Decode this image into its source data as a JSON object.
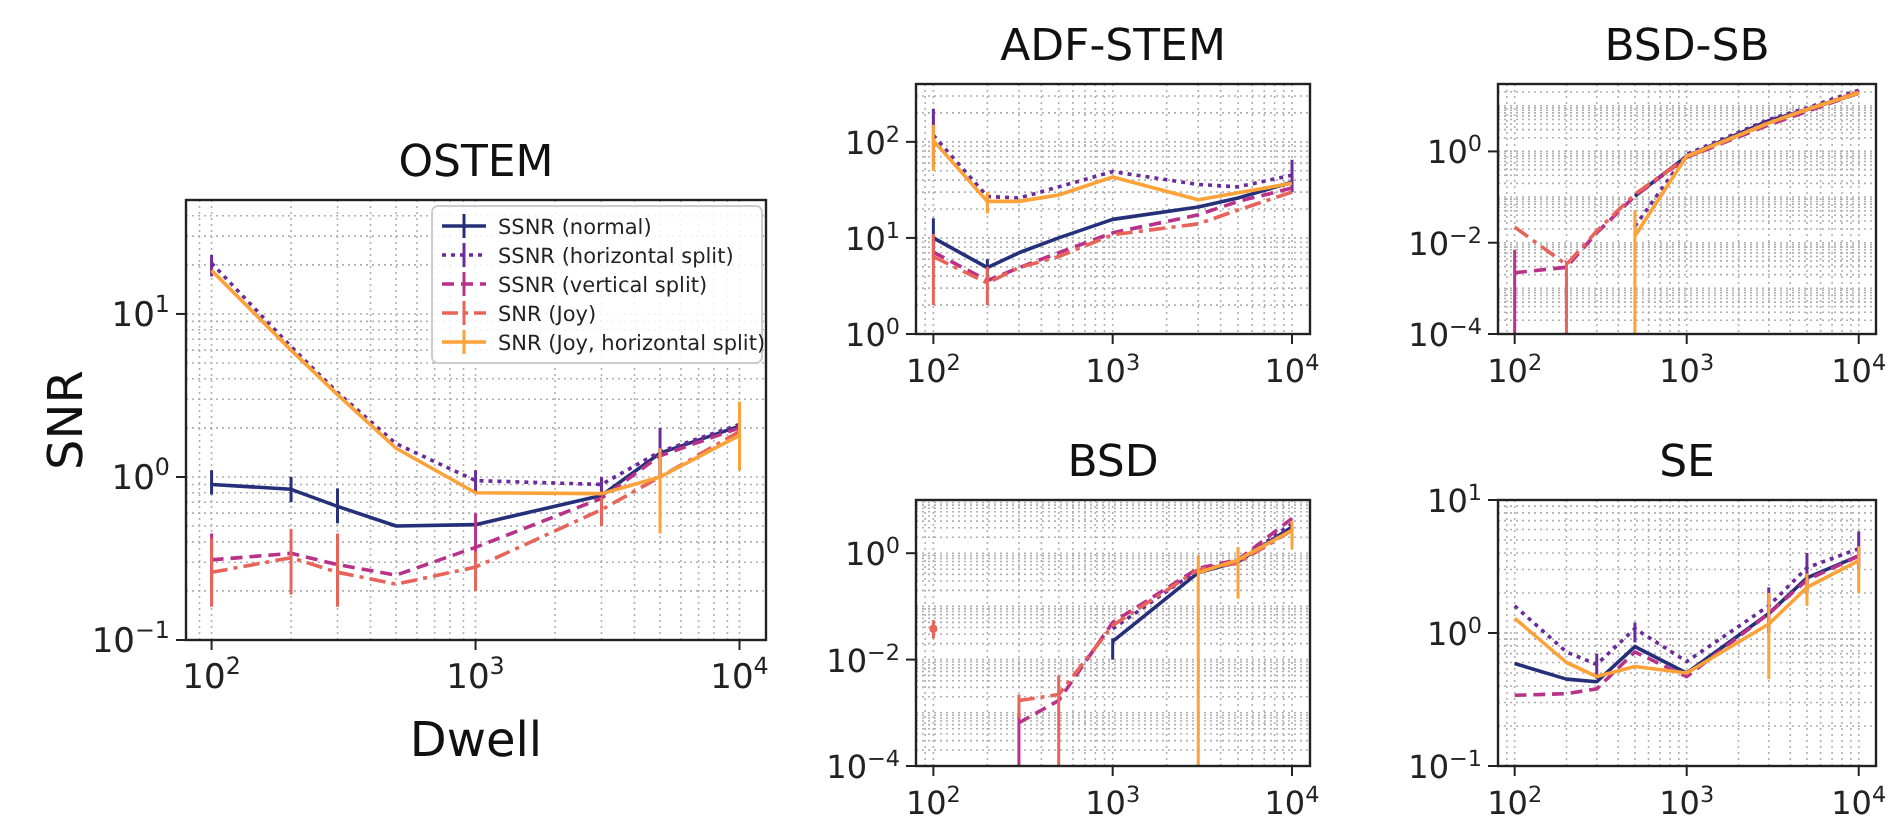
{
  "chart_data": [
    {
      "type": "line",
      "title": "OSTEM",
      "xlabel": "Dwell",
      "ylabel": "SNR",
      "x": [
        100,
        200,
        300,
        500,
        1000,
        3000,
        5000,
        10000
      ],
      "xlim": [
        80,
        12600
      ],
      "ylim": [
        0.1,
        50
      ],
      "log": "xy",
      "grid": true,
      "legend": "top right",
      "xticks": [
        {
          "value": 100,
          "label": "10$^{2}$"
        },
        {
          "value": 1000,
          "label": "10$^{3}$"
        },
        {
          "value": 10000,
          "label": "10$^{4}$"
        }
      ],
      "yticks": [
        {
          "value": 0.1,
          "label": "10$^{−1}$"
        },
        {
          "value": 1,
          "label": "10$^{0}$"
        },
        {
          "value": 10,
          "label": "10$^{1}$"
        }
      ],
      "series": [
        {
          "name": "SSNR (normal)",
          "color": "#26307a",
          "line_style": "solid",
          "values": [
            0.9,
            0.84,
            0.66,
            0.5,
            0.51,
            0.77,
            1.4,
            2.05
          ],
          "errors": [
            [
              0.78,
              1.1
            ],
            [
              0.7,
              1.0
            ],
            [
              0.52,
              0.85
            ],
            null,
            null,
            null,
            null,
            null
          ]
        },
        {
          "name": "SSNR (horizontal split)",
          "color": "#6a2c9a",
          "line_style": "dotted",
          "values": [
            20.5,
            6.3,
            3.3,
            1.6,
            0.95,
            0.9,
            1.43,
            2.1
          ],
          "errors": [
            [
              17,
              23
            ],
            null,
            null,
            null,
            [
              0.8,
              1.1
            ],
            [
              0.8,
              1.0
            ],
            [
              1.0,
              2.0
            ],
            null
          ]
        },
        {
          "name": "SSNR (vertical split)",
          "color": "#b83289",
          "line_style": "dashed",
          "values": [
            0.31,
            0.34,
            0.29,
            0.25,
            0.37,
            0.74,
            1.35,
            2.0
          ],
          "errors": [
            [
              0.2,
              0.45
            ],
            null,
            null,
            null,
            [
              0.3,
              0.6
            ],
            null,
            null,
            null
          ]
        },
        {
          "name": "SNR (Joy)",
          "color": "#e8635a",
          "line_style": "dashdot",
          "values": [
            0.26,
            0.32,
            0.26,
            0.22,
            0.28,
            0.63,
            1.0,
            1.9
          ],
          "errors": [
            [
              0.16,
              0.42
            ],
            [
              0.19,
              0.48
            ],
            [
              0.16,
              0.45
            ],
            null,
            [
              0.2,
              0.35
            ],
            [
              0.5,
              0.75
            ],
            null,
            null
          ]
        },
        {
          "name": "SNR (Joy, horizontal split)",
          "color": "#fba238",
          "line_style": "solid",
          "values": [
            18.5,
            6.0,
            3.2,
            1.5,
            0.8,
            0.79,
            1.0,
            1.8
          ],
          "errors": [
            null,
            null,
            null,
            null,
            null,
            null,
            [
              0.45,
              1.5
            ],
            [
              1.1,
              2.9
            ]
          ]
        }
      ]
    },
    {
      "type": "line",
      "title": "ADF-STEM",
      "x": [
        100,
        200,
        300,
        500,
        1000,
        3000,
        5000,
        10000
      ],
      "xlim": [
        80,
        12600
      ],
      "ylim": [
        1,
        400
      ],
      "log": "xy",
      "grid": true,
      "xticks": [
        {
          "value": 100,
          "label": "10$^{2}$"
        },
        {
          "value": 1000,
          "label": "10$^{3}$"
        },
        {
          "value": 10000,
          "label": "10$^{4}$"
        }
      ],
      "yticks": [
        {
          "value": 1,
          "label": "10$^{0}$"
        },
        {
          "value": 10,
          "label": "10$^{1}$"
        },
        {
          "value": 100,
          "label": "10$^{2}$"
        }
      ],
      "series": [
        {
          "color": "#26307a",
          "line_style": "solid",
          "values": [
            10,
            4.9,
            7.0,
            10,
            15.6,
            21,
            26,
            38
          ],
          "errors": [
            [
              6,
              16
            ],
            [
              3.5,
              6
            ],
            null,
            null,
            null,
            null,
            null,
            null
          ]
        },
        {
          "color": "#6a2c9a",
          "line_style": "dotted",
          "values": [
            117,
            27,
            26,
            34,
            49,
            36,
            34,
            45
          ],
          "errors": [
            [
              55,
              220
            ],
            null,
            null,
            null,
            null,
            null,
            null,
            [
              30,
              65
            ]
          ]
        },
        {
          "color": "#b83289",
          "line_style": "dashed",
          "values": [
            7.1,
            3.6,
            4.9,
            7,
            11.3,
            17.4,
            24,
            33
          ]
        },
        {
          "color": "#e8635a",
          "line_style": "dashdot",
          "values": [
            6.4,
            3.4,
            4.9,
            6.4,
            10.8,
            14,
            19.5,
            30
          ],
          "errors": [
            [
              2,
              11
            ],
            [
              2,
              5
            ],
            null,
            null,
            null,
            null,
            null,
            null
          ]
        },
        {
          "color": "#fba238",
          "line_style": "solid",
          "values": [
            103,
            24,
            24,
            28,
            43,
            25,
            29.5,
            37
          ],
          "errors": [
            [
              50,
              150
            ],
            [
              18,
              30
            ],
            null,
            null,
            null,
            null,
            null,
            null
          ]
        }
      ]
    },
    {
      "type": "line",
      "title": "BSD-SB",
      "x": [
        100,
        200,
        300,
        500,
        1000,
        3000,
        5000,
        10000
      ],
      "xlim": [
        80,
        12600
      ],
      "ylim": [
        0.0001,
        30
      ],
      "log": "xy",
      "grid": true,
      "xticks": [
        {
          "value": 100,
          "label": "10$^{2}$"
        },
        {
          "value": 1000,
          "label": "10$^{3}$"
        },
        {
          "value": 10000,
          "label": "10$^{4}$"
        }
      ],
      "yticks": [
        {
          "value": 0.0001,
          "label": "10$^{−4}$"
        },
        {
          "value": 0.01,
          "label": "10$^{−2}$"
        },
        {
          "value": 1,
          "label": "10$^{0}$"
        }
      ],
      "series": [
        {
          "color": "#26307a",
          "line_style": "solid",
          "values": [
            null,
            null,
            null,
            0.105,
            0.79,
            4.7,
            8.3,
            19
          ]
        },
        {
          "color": "#6a2c9a",
          "line_style": "dotted",
          "values": [
            null,
            null,
            null,
            0.023,
            0.87,
            5,
            9,
            22
          ]
        },
        {
          "color": "#b83289",
          "line_style": "dashed",
          "values": [
            0.0022,
            0.0029,
            0.0165,
            0.105,
            0.74,
            3.8,
            7.5,
            19
          ],
          "errors": [
            [
              0.0001,
              0.007
            ],
            null,
            null,
            null,
            null,
            null,
            null,
            null
          ]
        },
        {
          "color": "#e8635a",
          "line_style": "dashdot",
          "values": [
            0.022,
            0.0033,
            0.018,
            0.116,
            0.74,
            4.2,
            8.3,
            20
          ],
          "errors": [
            null,
            [
              0.0001,
              0.004
            ],
            null,
            null,
            null,
            null,
            null,
            null
          ]
        },
        {
          "color": "#fba238",
          "line_style": "solid",
          "values": [
            null,
            null,
            null,
            0.014,
            0.79,
            4.2,
            8.3,
            19
          ],
          "errors": [
            null,
            null,
            null,
            [
              0.0001,
              0.05
            ],
            null,
            null,
            null,
            null
          ]
        }
      ]
    },
    {
      "type": "line",
      "title": "BSD",
      "x": [
        100,
        200,
        300,
        500,
        1000,
        3000,
        5000,
        10000
      ],
      "xlim": [
        80,
        12600
      ],
      "ylim": [
        0.0001,
        10
      ],
      "log": "xy",
      "grid": true,
      "xticks": [
        {
          "value": 100,
          "label": "10$^{2}$"
        },
        {
          "value": 1000,
          "label": "10$^{3}$"
        },
        {
          "value": 10000,
          "label": "10$^{4}$"
        }
      ],
      "yticks": [
        {
          "value": 0.0001,
          "label": "10$^{−4}$"
        },
        {
          "value": 0.01,
          "label": "10$^{−2}$"
        },
        {
          "value": 1,
          "label": "10$^{0}$"
        }
      ],
      "series": [
        {
          "color": "#26307a",
          "line_style": "solid",
          "values": [
            null,
            null,
            null,
            null,
            0.022,
            0.43,
            0.69,
            3.1
          ],
          "errors": [
            null,
            null,
            null,
            null,
            [
              0.01,
              0.025
            ],
            null,
            null,
            null
          ]
        },
        {
          "color": "#6a2c9a",
          "line_style": "dotted",
          "values": [
            null,
            null,
            null,
            null,
            0.038,
            0.49,
            0.69,
            3.6
          ]
        },
        {
          "color": "#b83289",
          "line_style": "dashed",
          "values": [
            null,
            null,
            0.00065,
            0.0017,
            0.05,
            0.52,
            0.75,
            4.5
          ],
          "errors": [
            null,
            null,
            [
              0.0001,
              0.001
            ],
            null,
            null,
            null,
            null,
            null
          ]
        },
        {
          "color": "#e8635a",
          "line_style": "dashdot",
          "values": [
            0.038,
            null,
            0.0017,
            0.0022,
            0.044,
            0.49,
            0.65,
            2.7
          ],
          "errors": [
            [
              0.025,
              0.055
            ],
            null,
            [
              0.0008,
              0.0022
            ],
            [
              0.0001,
              0.005
            ],
            null,
            null,
            null,
            null
          ]
        },
        {
          "color": "#fba238",
          "line_style": "solid",
          "values": [
            null,
            null,
            null,
            null,
            null,
            0.43,
            0.75,
            2.7
          ],
          "errors": [
            null,
            null,
            null,
            null,
            null,
            [
              0.0001,
              0.9
            ],
            [
              0.14,
              1.3
            ],
            [
              1.2,
              4
            ]
          ]
        }
      ]
    },
    {
      "type": "line",
      "title": "SE",
      "x": [
        100,
        200,
        300,
        500,
        1000,
        3000,
        5000,
        10000
      ],
      "xlim": [
        80,
        12600
      ],
      "ylim": [
        0.1,
        10
      ],
      "log": "xy",
      "grid": true,
      "xticks": [
        {
          "value": 100,
          "label": "10$^{2}$"
        },
        {
          "value": 1000,
          "label": "10$^{3}$"
        },
        {
          "value": 10000,
          "label": "10$^{4}$"
        }
      ],
      "yticks": [
        {
          "value": 0.1,
          "label": "10$^{−1}$"
        },
        {
          "value": 1,
          "label": "10$^{0}$"
        },
        {
          "value": 10,
          "label": "10$^{1}$"
        }
      ],
      "series": [
        {
          "color": "#26307a",
          "line_style": "solid",
          "values": [
            0.59,
            0.45,
            0.43,
            0.79,
            0.5,
            1.4,
            2.6,
            3.8
          ]
        },
        {
          "color": "#6a2c9a",
          "line_style": "dotted",
          "values": [
            1.6,
            0.72,
            0.58,
            1.08,
            0.61,
            1.6,
            3.1,
            4.3
          ],
          "errors": [
            null,
            null,
            [
              0.45,
              0.7
            ],
            [
              0.85,
              1.2
            ],
            null,
            [
              1.0,
              2.2
            ],
            [
              2,
              4
            ],
            [
              3,
              5.8
            ]
          ]
        },
        {
          "color": "#b83289",
          "line_style": "dashed",
          "values": [
            0.34,
            0.35,
            0.38,
            0.72,
            0.47,
            1.4,
            2.5,
            3.8
          ]
        },
        {
          "color": "#fba238",
          "line_style": "solid",
          "values": [
            1.29,
            0.6,
            0.47,
            0.56,
            0.5,
            1.17,
            2.2,
            3.5
          ],
          "errors": [
            null,
            null,
            null,
            null,
            null,
            [
              0.45,
              2.0
            ],
            [
              1.6,
              2.8
            ],
            [
              2.0,
              4.5
            ]
          ]
        }
      ]
    }
  ]
}
